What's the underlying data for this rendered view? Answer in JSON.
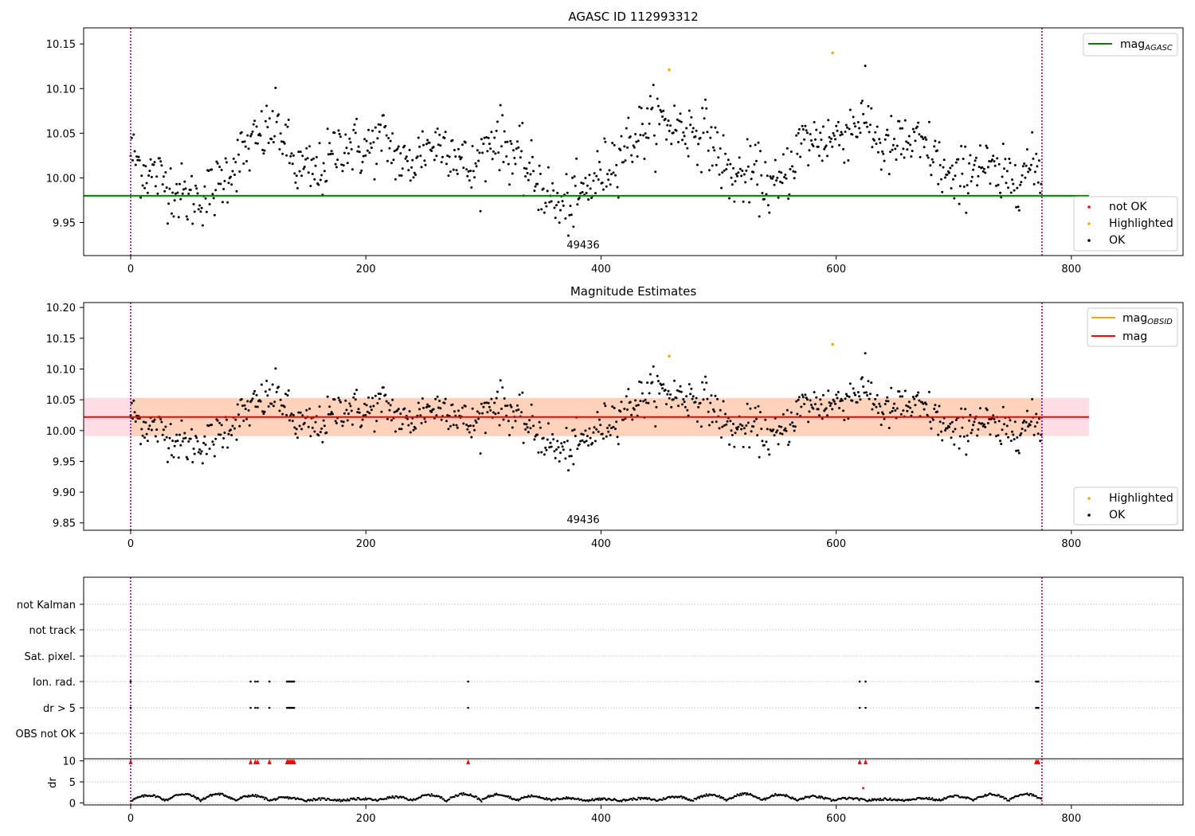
{
  "chart_data": [
    {
      "type": "scatter",
      "title": "AGASC ID 112993312",
      "xlim": [
        -40,
        895
      ],
      "ylim": [
        9.913,
        10.168
      ],
      "xticks": [
        "0",
        "200",
        "400",
        "600",
        "800"
      ],
      "yticks": [
        "9.95",
        "10.00",
        "10.05",
        "10.10",
        "10.15"
      ],
      "obsid_label": "49436",
      "obs_boundaries": [
        0,
        775
      ],
      "reference_line": {
        "name": "mag",
        "subscript": "AGASC",
        "value": 9.98,
        "color": "#008000"
      },
      "legend_top": [
        {
          "label": "mag",
          "subscript": "AGASC",
          "color": "#008000"
        }
      ],
      "legend_bottom": [
        {
          "label": "not OK",
          "color": "#ff0000"
        },
        {
          "label": "Highlighted",
          "color": "#ffa500"
        },
        {
          "label": "OK",
          "color": "#000000"
        }
      ],
      "highlighted_points": [
        [
          458,
          10.121
        ],
        [
          597,
          10.14
        ]
      ],
      "grid": false
    },
    {
      "type": "scatter",
      "title": "Magnitude Estimates",
      "xlim": [
        -40,
        895
      ],
      "ylim": [
        9.838,
        10.208
      ],
      "xticks": [
        "0",
        "200",
        "400",
        "600",
        "800"
      ],
      "yticks": [
        "9.85",
        "9.90",
        "9.95",
        "10.00",
        "10.05",
        "10.10",
        "10.15",
        "10.20"
      ],
      "obsid_label": "49436",
      "obs_boundaries": [
        0,
        775
      ],
      "mag_line": {
        "value": 10.022,
        "color": "#ff0000"
      },
      "mag_band": {
        "low": 9.991,
        "high": 10.053,
        "x_end": 815
      },
      "legend_top": [
        {
          "label": "mag",
          "subscript": "OBSID",
          "color": "#ffa500"
        },
        {
          "label": "mag",
          "subscript": "",
          "color": "#ff0000"
        }
      ],
      "legend_bottom": [
        {
          "label": "Highlighted",
          "color": "#ffa500"
        },
        {
          "label": "OK",
          "color": "#000000"
        }
      ],
      "highlighted_points": [
        [
          458,
          10.121
        ],
        [
          597,
          10.14
        ]
      ],
      "grid": false
    },
    {
      "type": "scatter",
      "title": "",
      "xlim": [
        -40,
        895
      ],
      "xticks": [
        "0",
        "200",
        "400",
        "600",
        "800"
      ],
      "flag_rows": [
        "not Kalman",
        "not track",
        "Sat. pixel.",
        "Ion. rad.",
        "dr > 5",
        "OBS not OK"
      ],
      "flag_x": {
        "not Kalman": [],
        "not track": [],
        "Sat. pixel.": [],
        "Ion. rad.": [
          0,
          102,
          106,
          108,
          118,
          133,
          134,
          135,
          136,
          137,
          138,
          139,
          287,
          620,
          625,
          770,
          771,
          772
        ],
        "dr > 5": [
          0,
          102,
          106,
          108,
          118,
          133,
          134,
          135,
          136,
          137,
          138,
          139,
          287,
          620,
          625,
          770,
          771,
          772
        ],
        "OBS not OK": []
      },
      "dr_ylabel": "dr",
      "dr_yticks": [
        "0",
        "5",
        "10"
      ],
      "dr_ylim": [
        -0.5,
        10.5
      ],
      "dr_clipped_x": [
        0,
        102,
        106,
        108,
        118,
        133,
        134,
        135,
        136,
        137,
        138,
        139,
        287,
        620,
        625,
        770,
        771,
        772
      ],
      "dr_outliers": [
        [
          623,
          3.5
        ]
      ],
      "obs_boundaries": [
        0,
        775
      ],
      "grid": true
    }
  ]
}
